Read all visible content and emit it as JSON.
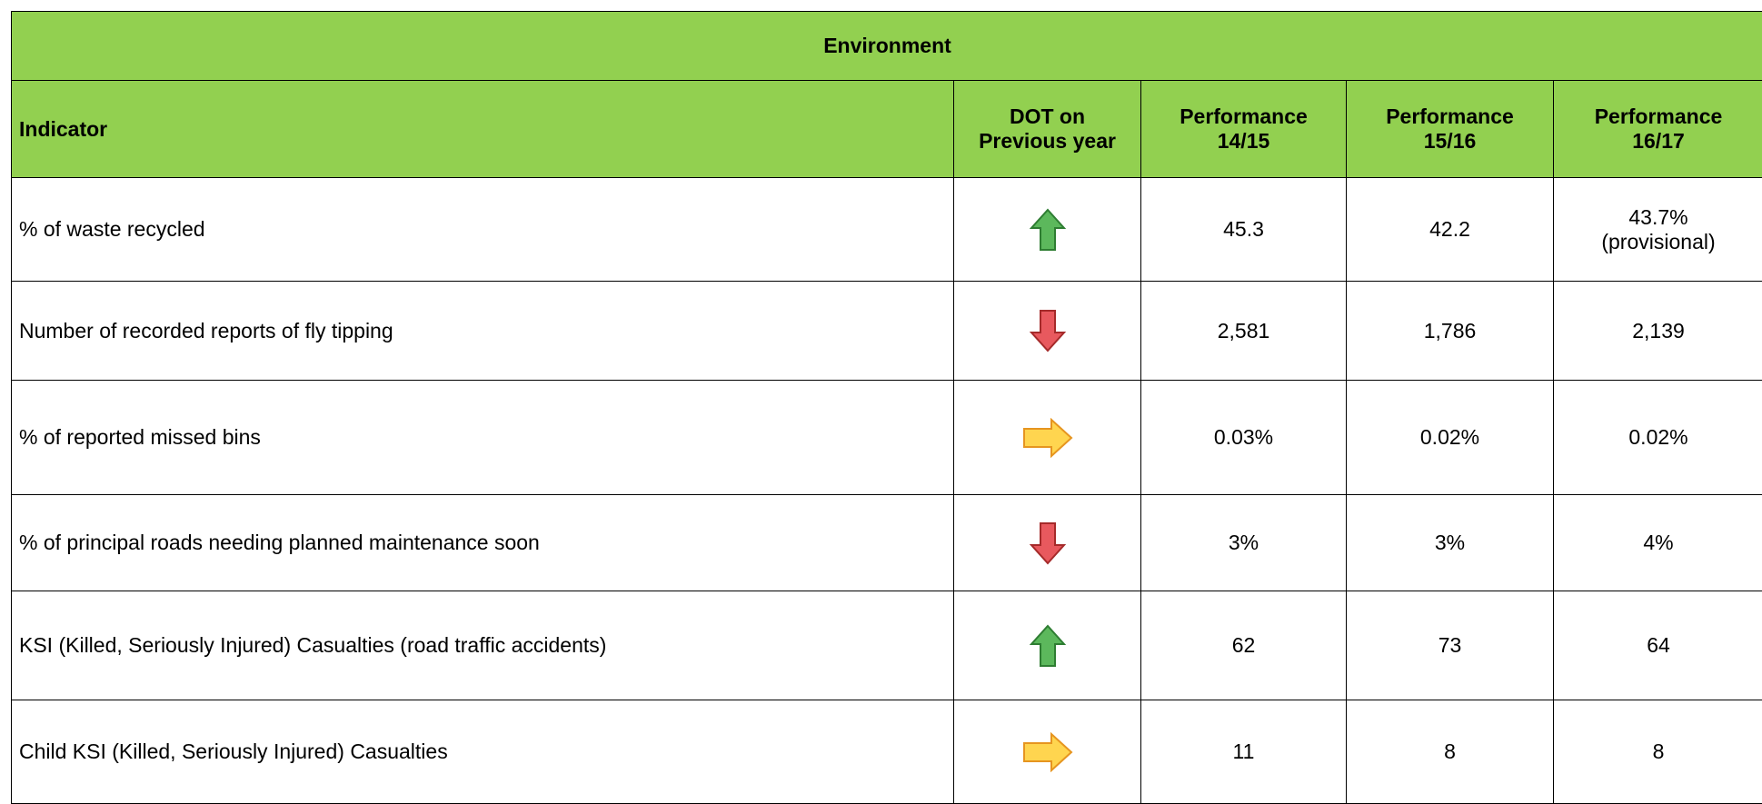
{
  "title": "Environment",
  "header": {
    "indicator": "Indicator",
    "dot": "DOT on\nPrevious year",
    "p1": "Performance\n14/15",
    "p2": "Performance\n15/16",
    "p3": "Performance\n16/17"
  },
  "table": {
    "rows": [
      {
        "indicator": "% of waste recycled",
        "dot": "up",
        "p1": "45.3",
        "p2": "42.2",
        "p3": "43.7%\n(provisional)"
      },
      {
        "indicator": "Number of recorded reports of fly tipping",
        "dot": "down",
        "p1": "2,581",
        "p2": "1,786",
        "p3": "2,139"
      },
      {
        "indicator": "% of reported missed bins",
        "dot": "right",
        "p1": "0.03%",
        "p2": "0.02%",
        "p3": "0.02%"
      },
      {
        "indicator": "% of  principal roads needing planned maintenance soon",
        "dot": "down",
        "p1": "3%",
        "p2": "3%",
        "p3": "4%"
      },
      {
        "indicator": "KSI (Killed, Seriously Injured) Casualties (road traffic accidents)",
        "dot": "up",
        "p1": "62",
        "p2": "73",
        "p3": "64"
      },
      {
        "indicator": "Child KSI (Killed, Seriously Injured) Casualties",
        "dot": "right",
        "p1": "11",
        "p2": "8",
        "p3": "8"
      }
    ]
  }
}
